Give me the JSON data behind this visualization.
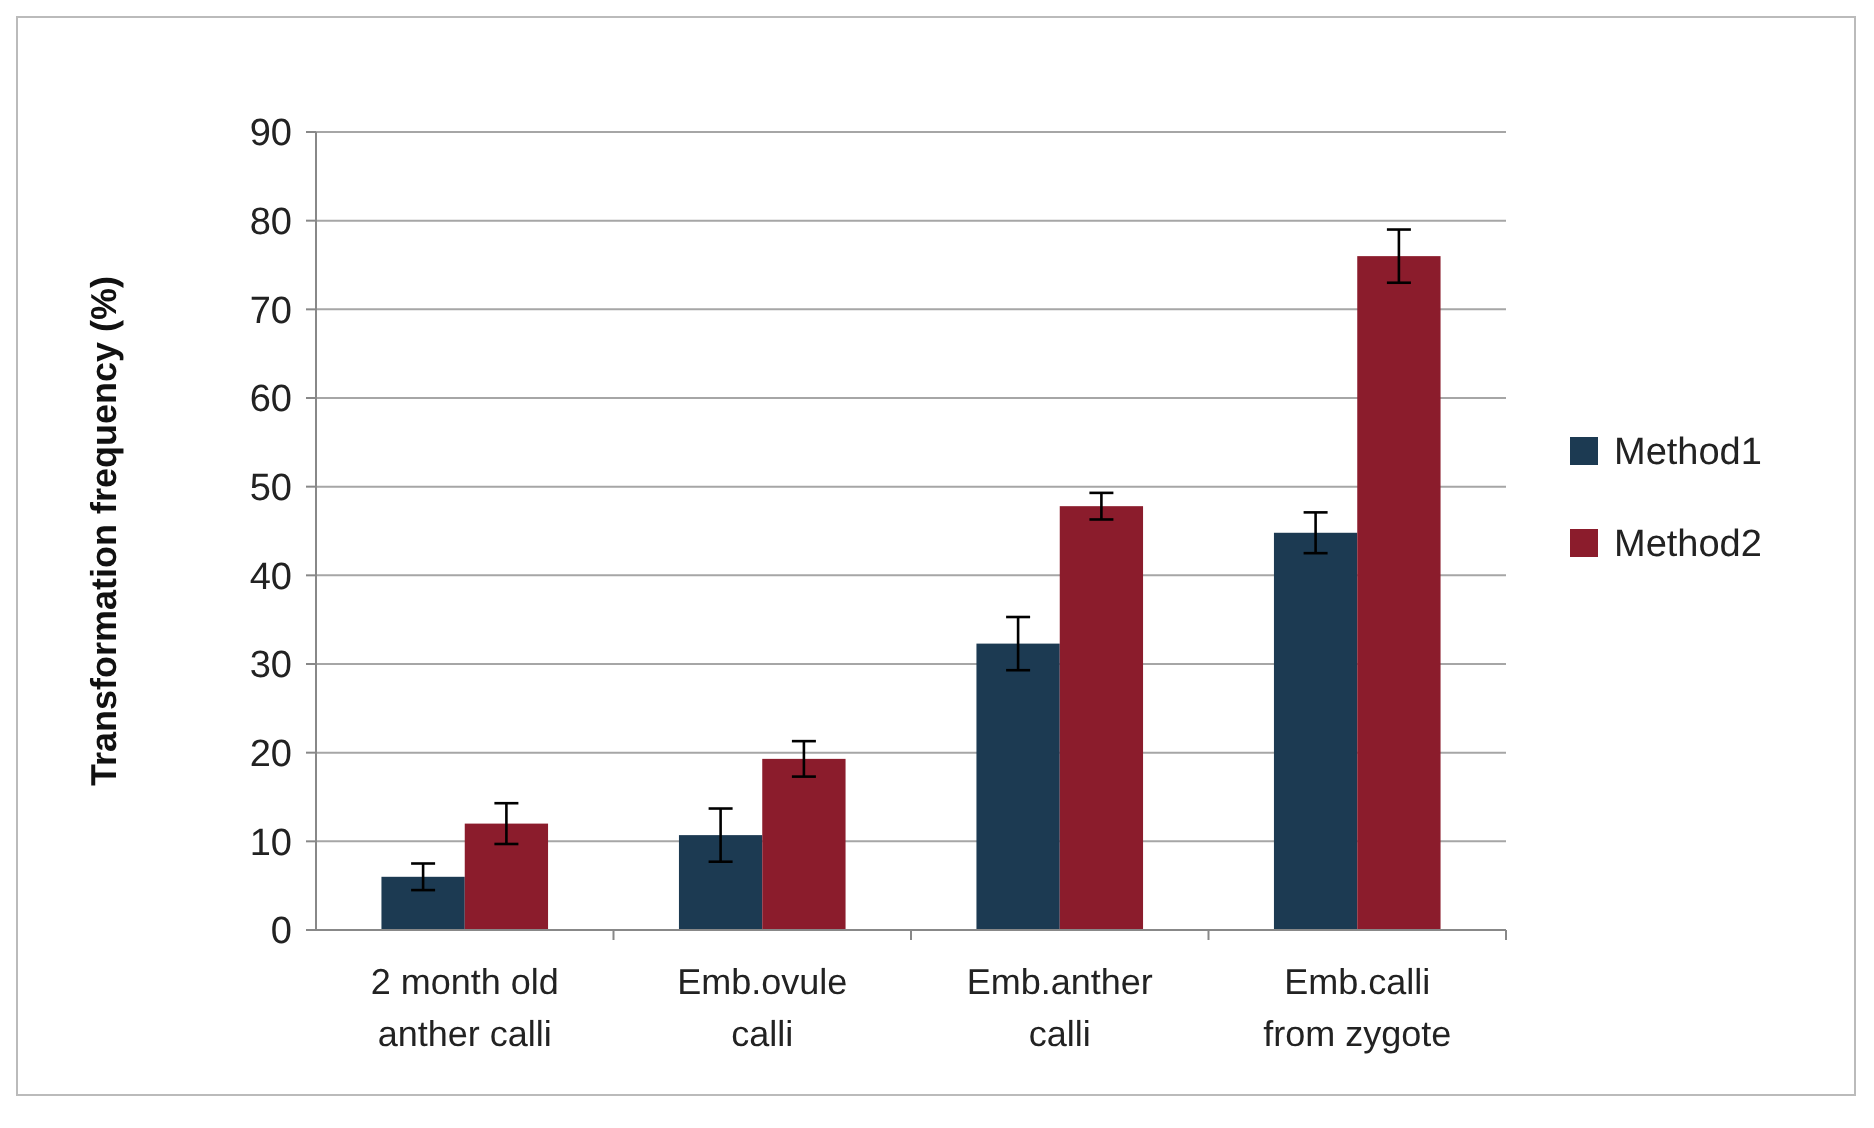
{
  "chart_data": {
    "type": "bar",
    "ylabel": "Transformation frequency (%)",
    "categories": [
      "2 month old\nanther calli",
      "Emb.ovule\ncalli",
      "Emb.anther\ncalli",
      "Emb.calli\nfrom zygote"
    ],
    "series": [
      {
        "name": "Method1",
        "color": "#1c3a52",
        "values": [
          6,
          10.7,
          32.3,
          44.8
        ],
        "errors": [
          1.5,
          3,
          3,
          2.3
        ]
      },
      {
        "name": "Method2",
        "color": "#8b1c2c",
        "values": [
          12,
          19.3,
          47.8,
          76
        ],
        "errors": [
          2.3,
          2,
          1.5,
          3
        ]
      }
    ],
    "ylim": [
      0,
      90
    ],
    "yticks": [
      0,
      10,
      20,
      30,
      40,
      50,
      60,
      70,
      80,
      90
    ],
    "grid": "y",
    "legend": "right"
  }
}
